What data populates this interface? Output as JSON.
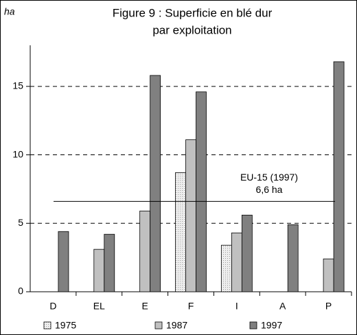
{
  "chart_data": {
    "type": "bar",
    "title": [
      "Figure 9 : Superficie en blé dur",
      "par exploitation"
    ],
    "y_label": "ha",
    "categories": [
      "D",
      "EL",
      "E",
      "F",
      "I",
      "A",
      "P"
    ],
    "series": [
      {
        "name": "1975",
        "color": "#eeeeee",
        "values": [
          null,
          null,
          null,
          8.7,
          3.4,
          null,
          null
        ]
      },
      {
        "name": "1987",
        "color": "#c0c0c0",
        "values": [
          null,
          3.1,
          5.9,
          11.1,
          4.3,
          null,
          2.4
        ]
      },
      {
        "name": "1997",
        "color": "#808080",
        "values": [
          4.4,
          4.2,
          15.8,
          14.6,
          5.6,
          4.9,
          16.8
        ]
      }
    ],
    "ylim": [
      0,
      18
    ],
    "yticks": [
      0,
      5,
      10,
      15
    ],
    "grid": true,
    "reference_line": {
      "value": 6.6,
      "label": "6,6 ha",
      "name": "EU-15 (1997)"
    }
  }
}
